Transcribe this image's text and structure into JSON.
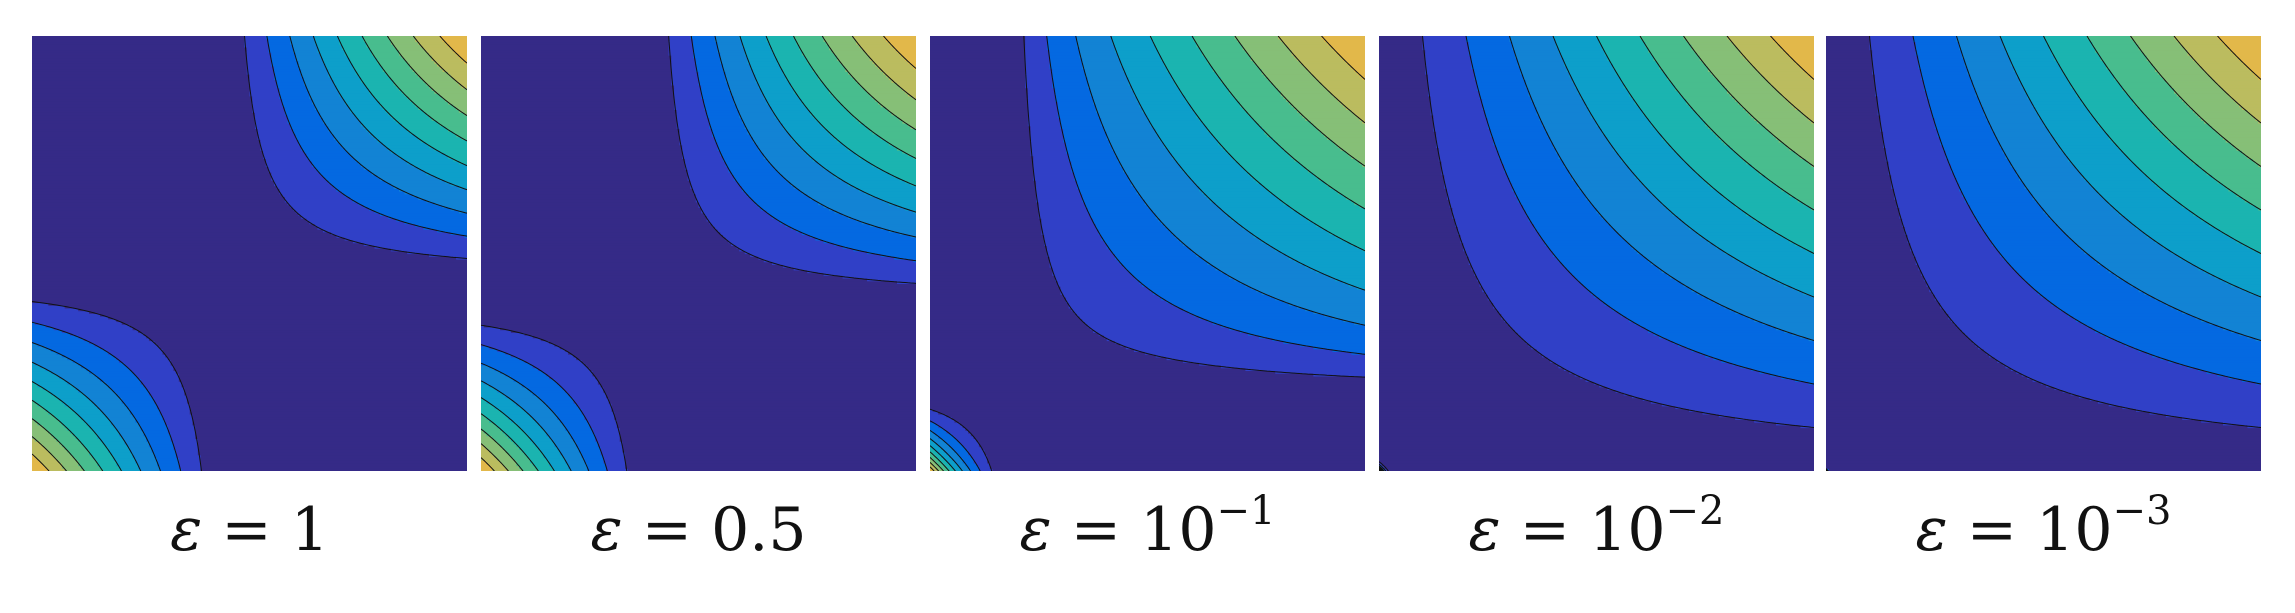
{
  "chart_data": [
    {
      "type": "contour",
      "caption": {
        "symbol": "ε",
        "eq": " = ",
        "base": "1",
        "exp": ""
      },
      "epsilon": 1,
      "xlim": [
        0,
        1
      ],
      "ylim": [
        0,
        1
      ],
      "levels": [
        0.1,
        0.2,
        0.3,
        0.4,
        0.5,
        0.6,
        0.7,
        0.8,
        0.9
      ],
      "colormap": [
        "#352a87",
        "#3040c7",
        "#0469e1",
        "#1283d4",
        "#0d9fca",
        "#1bb4b0",
        "#48bd8e",
        "#86bf77",
        "#bbbc5f",
        "#e2b84a",
        "#fcc33a",
        "#f9fb0e"
      ],
      "grid": false,
      "axes_visible": false
    },
    {
      "type": "contour",
      "caption": {
        "symbol": "ε",
        "eq": " = ",
        "base": "0.5",
        "exp": ""
      },
      "epsilon": 0.5,
      "xlim": [
        0,
        1
      ],
      "ylim": [
        0,
        1
      ],
      "levels": [
        0.1,
        0.2,
        0.3,
        0.4,
        0.5,
        0.6,
        0.7,
        0.8,
        0.9
      ],
      "colormap": [
        "#352a87",
        "#3040c7",
        "#0469e1",
        "#1283d4",
        "#0d9fca",
        "#1bb4b0",
        "#48bd8e",
        "#86bf77",
        "#bbbc5f",
        "#e2b84a",
        "#fcc33a",
        "#f9fb0e"
      ],
      "grid": false,
      "axes_visible": false
    },
    {
      "type": "contour",
      "caption": {
        "symbol": "ε",
        "eq": " = ",
        "base": "10",
        "exp": "−1"
      },
      "epsilon": 0.1,
      "xlim": [
        0,
        1
      ],
      "ylim": [
        0,
        1
      ],
      "levels": [
        0.1,
        0.2,
        0.3,
        0.4,
        0.5,
        0.6,
        0.7,
        0.8,
        0.9
      ],
      "colormap": [
        "#352a87",
        "#3040c7",
        "#0469e1",
        "#1283d4",
        "#0d9fca",
        "#1bb4b0",
        "#48bd8e",
        "#86bf77",
        "#bbbc5f",
        "#e2b84a",
        "#fcc33a",
        "#f9fb0e"
      ],
      "grid": false,
      "axes_visible": false
    },
    {
      "type": "contour",
      "caption": {
        "symbol": "ε",
        "eq": " = ",
        "base": "10",
        "exp": "−2"
      },
      "epsilon": 0.01,
      "xlim": [
        0,
        1
      ],
      "ylim": [
        0,
        1
      ],
      "levels": [
        0.1,
        0.2,
        0.3,
        0.4,
        0.5,
        0.6,
        0.7,
        0.8,
        0.9
      ],
      "colormap": [
        "#352a87",
        "#3040c7",
        "#0469e1",
        "#1283d4",
        "#0d9fca",
        "#1bb4b0",
        "#48bd8e",
        "#86bf77",
        "#bbbc5f",
        "#e2b84a",
        "#fcc33a",
        "#f9fb0e"
      ],
      "grid": false,
      "axes_visible": false
    },
    {
      "type": "contour",
      "caption": {
        "symbol": "ε",
        "eq": " = ",
        "base": "10",
        "exp": "−3"
      },
      "epsilon": 0.001,
      "xlim": [
        0,
        1
      ],
      "ylim": [
        0,
        1
      ],
      "levels": [
        0.1,
        0.2,
        0.3,
        0.4,
        0.5,
        0.6,
        0.7,
        0.8,
        0.9
      ],
      "colormap": [
        "#352a87",
        "#3040c7",
        "#0469e1",
        "#1283d4",
        "#0d9fca",
        "#1bb4b0",
        "#48bd8e",
        "#86bf77",
        "#bbbc5f",
        "#e2b84a",
        "#fcc33a",
        "#f9fb0e"
      ],
      "grid": false,
      "axes_visible": false
    }
  ]
}
